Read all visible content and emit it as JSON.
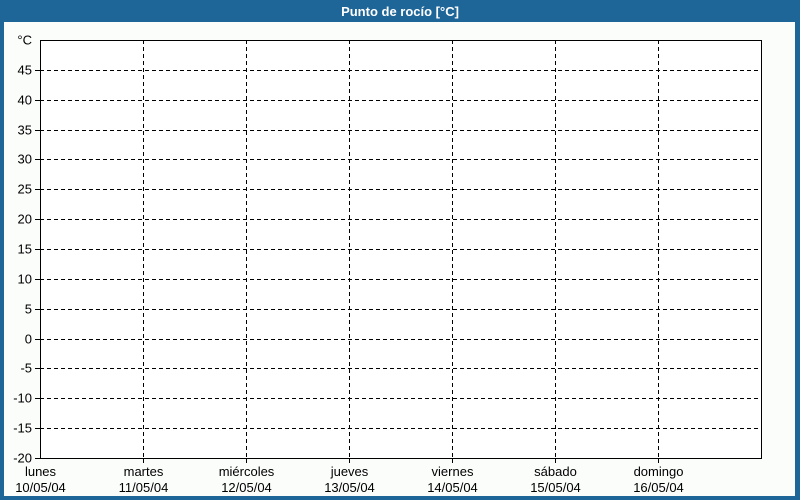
{
  "window": {
    "title": "Punto de rocío [°C]"
  },
  "colors": {
    "frame": "#1e6598",
    "titlebar": "#1e6598",
    "title_text": "#ffffff",
    "content_bg": "#fbfdfb",
    "plot_bg": "#fefffe",
    "grid": "#000000",
    "label": "#000000"
  },
  "chart_data": {
    "type": "line",
    "title": "Punto de rocío [°C]",
    "ylabel": "°C",
    "ylim": [
      -20,
      50
    ],
    "ytick_step": 5,
    "yticks": [
      45,
      40,
      35,
      30,
      25,
      20,
      15,
      10,
      5,
      0,
      -5,
      -10,
      -15,
      -20
    ],
    "grid": true,
    "legend": "none",
    "x_axis": {
      "days": [
        {
          "name": "lunes",
          "date": "10/05/04"
        },
        {
          "name": "martes",
          "date": "11/05/04"
        },
        {
          "name": "miércoles",
          "date": "12/05/04"
        },
        {
          "name": "jueves",
          "date": "13/05/04"
        },
        {
          "name": "viernes",
          "date": "14/05/04"
        },
        {
          "name": "sábado",
          "date": "15/05/04"
        },
        {
          "name": "domingo",
          "date": "16/05/04"
        }
      ]
    },
    "series": []
  }
}
